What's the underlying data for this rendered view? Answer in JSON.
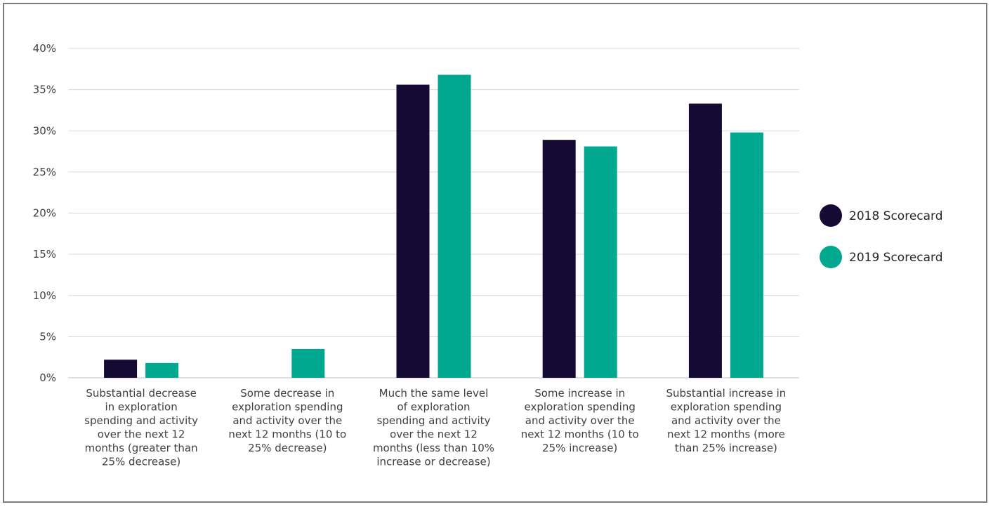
{
  "chart_data": {
    "type": "bar",
    "categories": [
      [
        "Substantial decrease",
        "in exploration",
        "spending and activity",
        "over the next 12",
        "months (greater than",
        "25% decrease)"
      ],
      [
        "Some decrease in",
        "exploration spending",
        "and activity over the",
        "next 12 months (10 to",
        "25% decrease)"
      ],
      [
        "Much the same level",
        "of exploration",
        "spending and activity",
        "over the next 12",
        "months (less than 10%",
        "increase or decrease)"
      ],
      [
        "Some increase in",
        "exploration spending",
        "and activity over the",
        "next 12 months (10 to",
        "25% increase)"
      ],
      [
        "Substantial increase in",
        "exploration spending",
        "and activity over the",
        "next 12 months (more",
        "than 25% increase)"
      ]
    ],
    "series": [
      {
        "name": "2018 Scorecard",
        "color": "#140a33",
        "values": [
          2.2,
          0,
          35.6,
          28.9,
          33.3
        ]
      },
      {
        "name": "2019 Scorecard",
        "color": "#00a88f",
        "values": [
          1.8,
          3.5,
          36.8,
          28.1,
          29.8
        ]
      }
    ],
    "ylim": [
      0,
      40
    ],
    "yticks": [
      "0%",
      "5%",
      "10%",
      "15%",
      "20%",
      "25%",
      "30%",
      "35%",
      "40%"
    ],
    "ytick_values": [
      0,
      5,
      10,
      15,
      20,
      25,
      30,
      35,
      40
    ],
    "grid": true,
    "legend_position": "right"
  }
}
